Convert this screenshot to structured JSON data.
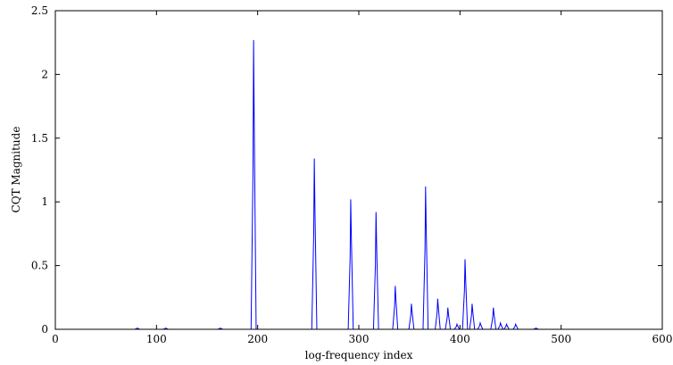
{
  "chart_data": {
    "type": "line",
    "title": "",
    "xlabel": "log-frequency index",
    "ylabel": "CQT Magnitude",
    "xlim": [
      0,
      600
    ],
    "ylim": [
      0,
      2.5
    ],
    "x_ticks": [
      0,
      100,
      200,
      300,
      400,
      500,
      600
    ],
    "x_tick_labels": [
      "0",
      "100",
      "200",
      "300",
      "400",
      "500",
      "600"
    ],
    "y_ticks": [
      0,
      0.5,
      1,
      1.5,
      2,
      2.5
    ],
    "y_tick_labels": [
      "0",
      "0.5",
      "1",
      "1.5",
      "2",
      "2.5"
    ],
    "grid": false,
    "line_color": "#0000ff",
    "series": [
      {
        "peaks": [
          {
            "x": 81,
            "y": 0.01
          },
          {
            "x": 109,
            "y": 0.01
          },
          {
            "x": 163,
            "y": 0.01
          },
          {
            "x": 196,
            "y": 2.27
          },
          {
            "x": 256,
            "y": 1.34
          },
          {
            "x": 292,
            "y": 1.02
          },
          {
            "x": 317,
            "y": 0.92
          },
          {
            "x": 336,
            "y": 0.34
          },
          {
            "x": 352,
            "y": 0.2
          },
          {
            "x": 366,
            "y": 1.12
          },
          {
            "x": 378,
            "y": 0.24
          },
          {
            "x": 388,
            "y": 0.17
          },
          {
            "x": 397,
            "y": 0.04
          },
          {
            "x": 405,
            "y": 0.55
          },
          {
            "x": 412,
            "y": 0.2
          },
          {
            "x": 420,
            "y": 0.05
          },
          {
            "x": 433,
            "y": 0.17
          },
          {
            "x": 440,
            "y": 0.05
          },
          {
            "x": 446,
            "y": 0.04
          },
          {
            "x": 455,
            "y": 0.04
          },
          {
            "x": 475,
            "y": 0.01
          }
        ]
      }
    ]
  }
}
